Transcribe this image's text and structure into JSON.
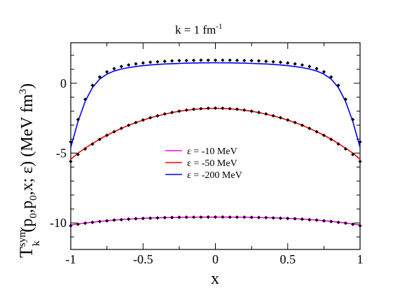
{
  "chart_data": {
    "type": "line",
    "title_main": "k = 1 fm",
    "title_sup": "-1",
    "xlabel": "x",
    "ylabel_parts": {
      "T": "T",
      "sup": "sym",
      "sub": "k",
      "args_pre": "(p",
      "args_sub1": "0",
      "args_mid": ",p",
      "args_sub2": "0",
      "args_post": ",x; ε) (MeV fm",
      "unit_sup": "3",
      "unit_close": ")"
    },
    "xlim": [
      -1,
      1
    ],
    "ylim": [
      -11.9,
      2.9
    ],
    "xticks": [
      -1,
      -0.5,
      0,
      0.5,
      1
    ],
    "xtick_labels": [
      "-1",
      "-0.5",
      "0",
      "0.5",
      "1"
    ],
    "yticks": [
      -10,
      -5,
      0
    ],
    "ytick_labels": [
      "-10",
      "-5",
      "0"
    ],
    "grid": false,
    "legend_position": "center",
    "x": [
      -1.0,
      -0.95,
      -0.9,
      -0.85,
      -0.8,
      -0.75,
      -0.7,
      -0.65,
      -0.6,
      -0.55,
      -0.5,
      -0.45,
      -0.4,
      -0.35,
      -0.3,
      -0.25,
      -0.2,
      -0.15,
      -0.1,
      -0.05,
      0.0,
      0.05,
      0.1,
      0.15,
      0.2,
      0.25,
      0.3,
      0.35,
      0.4,
      0.45,
      0.5,
      0.55,
      0.6,
      0.65,
      0.7,
      0.75,
      0.8,
      0.85,
      0.9,
      0.95,
      1.0
    ],
    "series": [
      {
        "name": "ε = -10 MeV",
        "color": "#ff00ff",
        "values": [
          -10.15,
          -10.07,
          -10.01,
          -9.95,
          -9.89,
          -9.84,
          -9.8,
          -9.76,
          -9.73,
          -9.7,
          -9.67,
          -9.65,
          -9.63,
          -9.62,
          -9.61,
          -9.6,
          -9.59,
          -9.59,
          -9.58,
          -9.58,
          -9.58,
          -9.58,
          -9.58,
          -9.59,
          -9.59,
          -9.6,
          -9.61,
          -9.62,
          -9.63,
          -9.65,
          -9.67,
          -9.7,
          -9.73,
          -9.76,
          -9.8,
          -9.84,
          -9.89,
          -9.95,
          -10.01,
          -10.07,
          -10.15
        ],
        "markers": [
          -10.2,
          -10.1,
          -10.02,
          -9.96,
          -9.9,
          -9.85,
          -9.8,
          -9.77,
          -9.73,
          -9.7,
          -9.68,
          -9.66,
          -9.64,
          -9.62,
          -9.61,
          -9.6,
          -9.59,
          -9.59,
          -9.59,
          -9.58,
          -9.58,
          -9.58,
          -9.59,
          -9.59,
          -9.59,
          -9.6,
          -9.61,
          -9.62,
          -9.64,
          -9.66,
          -9.68,
          -9.7,
          -9.73,
          -9.77,
          -9.8,
          -9.85,
          -9.9,
          -9.96,
          -10.02,
          -10.1,
          -10.2
        ]
      },
      {
        "name": "ε = -50 MeV",
        "color": "#ff0000",
        "values": [
          -5.45,
          -5.0,
          -4.65,
          -4.32,
          -4.0,
          -3.72,
          -3.47,
          -3.23,
          -3.01,
          -2.82,
          -2.64,
          -2.48,
          -2.34,
          -2.21,
          -2.1,
          -2.0,
          -1.93,
          -1.87,
          -1.83,
          -1.8,
          -1.8,
          -1.8,
          -1.83,
          -1.87,
          -1.93,
          -2.0,
          -2.1,
          -2.21,
          -2.34,
          -2.48,
          -2.64,
          -2.82,
          -3.01,
          -3.23,
          -3.47,
          -3.72,
          -4.0,
          -4.32,
          -4.65,
          -5.0,
          -5.45
        ],
        "markers": [
          -5.6,
          -5.1,
          -4.7,
          -4.35,
          -4.02,
          -3.73,
          -3.47,
          -3.23,
          -3.01,
          -2.81,
          -2.63,
          -2.47,
          -2.33,
          -2.2,
          -2.09,
          -2.0,
          -1.92,
          -1.86,
          -1.82,
          -1.79,
          -1.78,
          -1.79,
          -1.82,
          -1.86,
          -1.92,
          -2.0,
          -2.09,
          -2.2,
          -2.33,
          -2.47,
          -2.63,
          -2.81,
          -3.01,
          -3.23,
          -3.47,
          -3.73,
          -4.02,
          -4.35,
          -4.7,
          -5.1,
          -5.6
        ]
      },
      {
        "name": "ε = -200 MeV",
        "color": "#0000ff",
        "values": [
          -4.6,
          -2.75,
          -1.3,
          -0.3,
          0.3,
          0.65,
          0.88,
          1.02,
          1.12,
          1.2,
          1.26,
          1.31,
          1.35,
          1.38,
          1.4,
          1.42,
          1.44,
          1.45,
          1.46,
          1.46,
          1.47,
          1.46,
          1.46,
          1.45,
          1.44,
          1.42,
          1.4,
          1.38,
          1.35,
          1.31,
          1.26,
          1.2,
          1.12,
          1.02,
          0.88,
          0.65,
          0.3,
          -0.3,
          -1.3,
          -2.75,
          -4.6
        ],
        "markers": [
          -4.2,
          -2.6,
          -1.15,
          -0.15,
          0.45,
          0.82,
          1.05,
          1.2,
          1.31,
          1.39,
          1.45,
          1.5,
          1.54,
          1.57,
          1.6,
          1.62,
          1.63,
          1.64,
          1.65,
          1.65,
          1.65,
          1.65,
          1.65,
          1.64,
          1.63,
          1.62,
          1.6,
          1.57,
          1.54,
          1.5,
          1.45,
          1.39,
          1.31,
          1.2,
          1.05,
          0.82,
          0.45,
          -0.15,
          -1.15,
          -2.6,
          -4.2
        ]
      }
    ]
  }
}
